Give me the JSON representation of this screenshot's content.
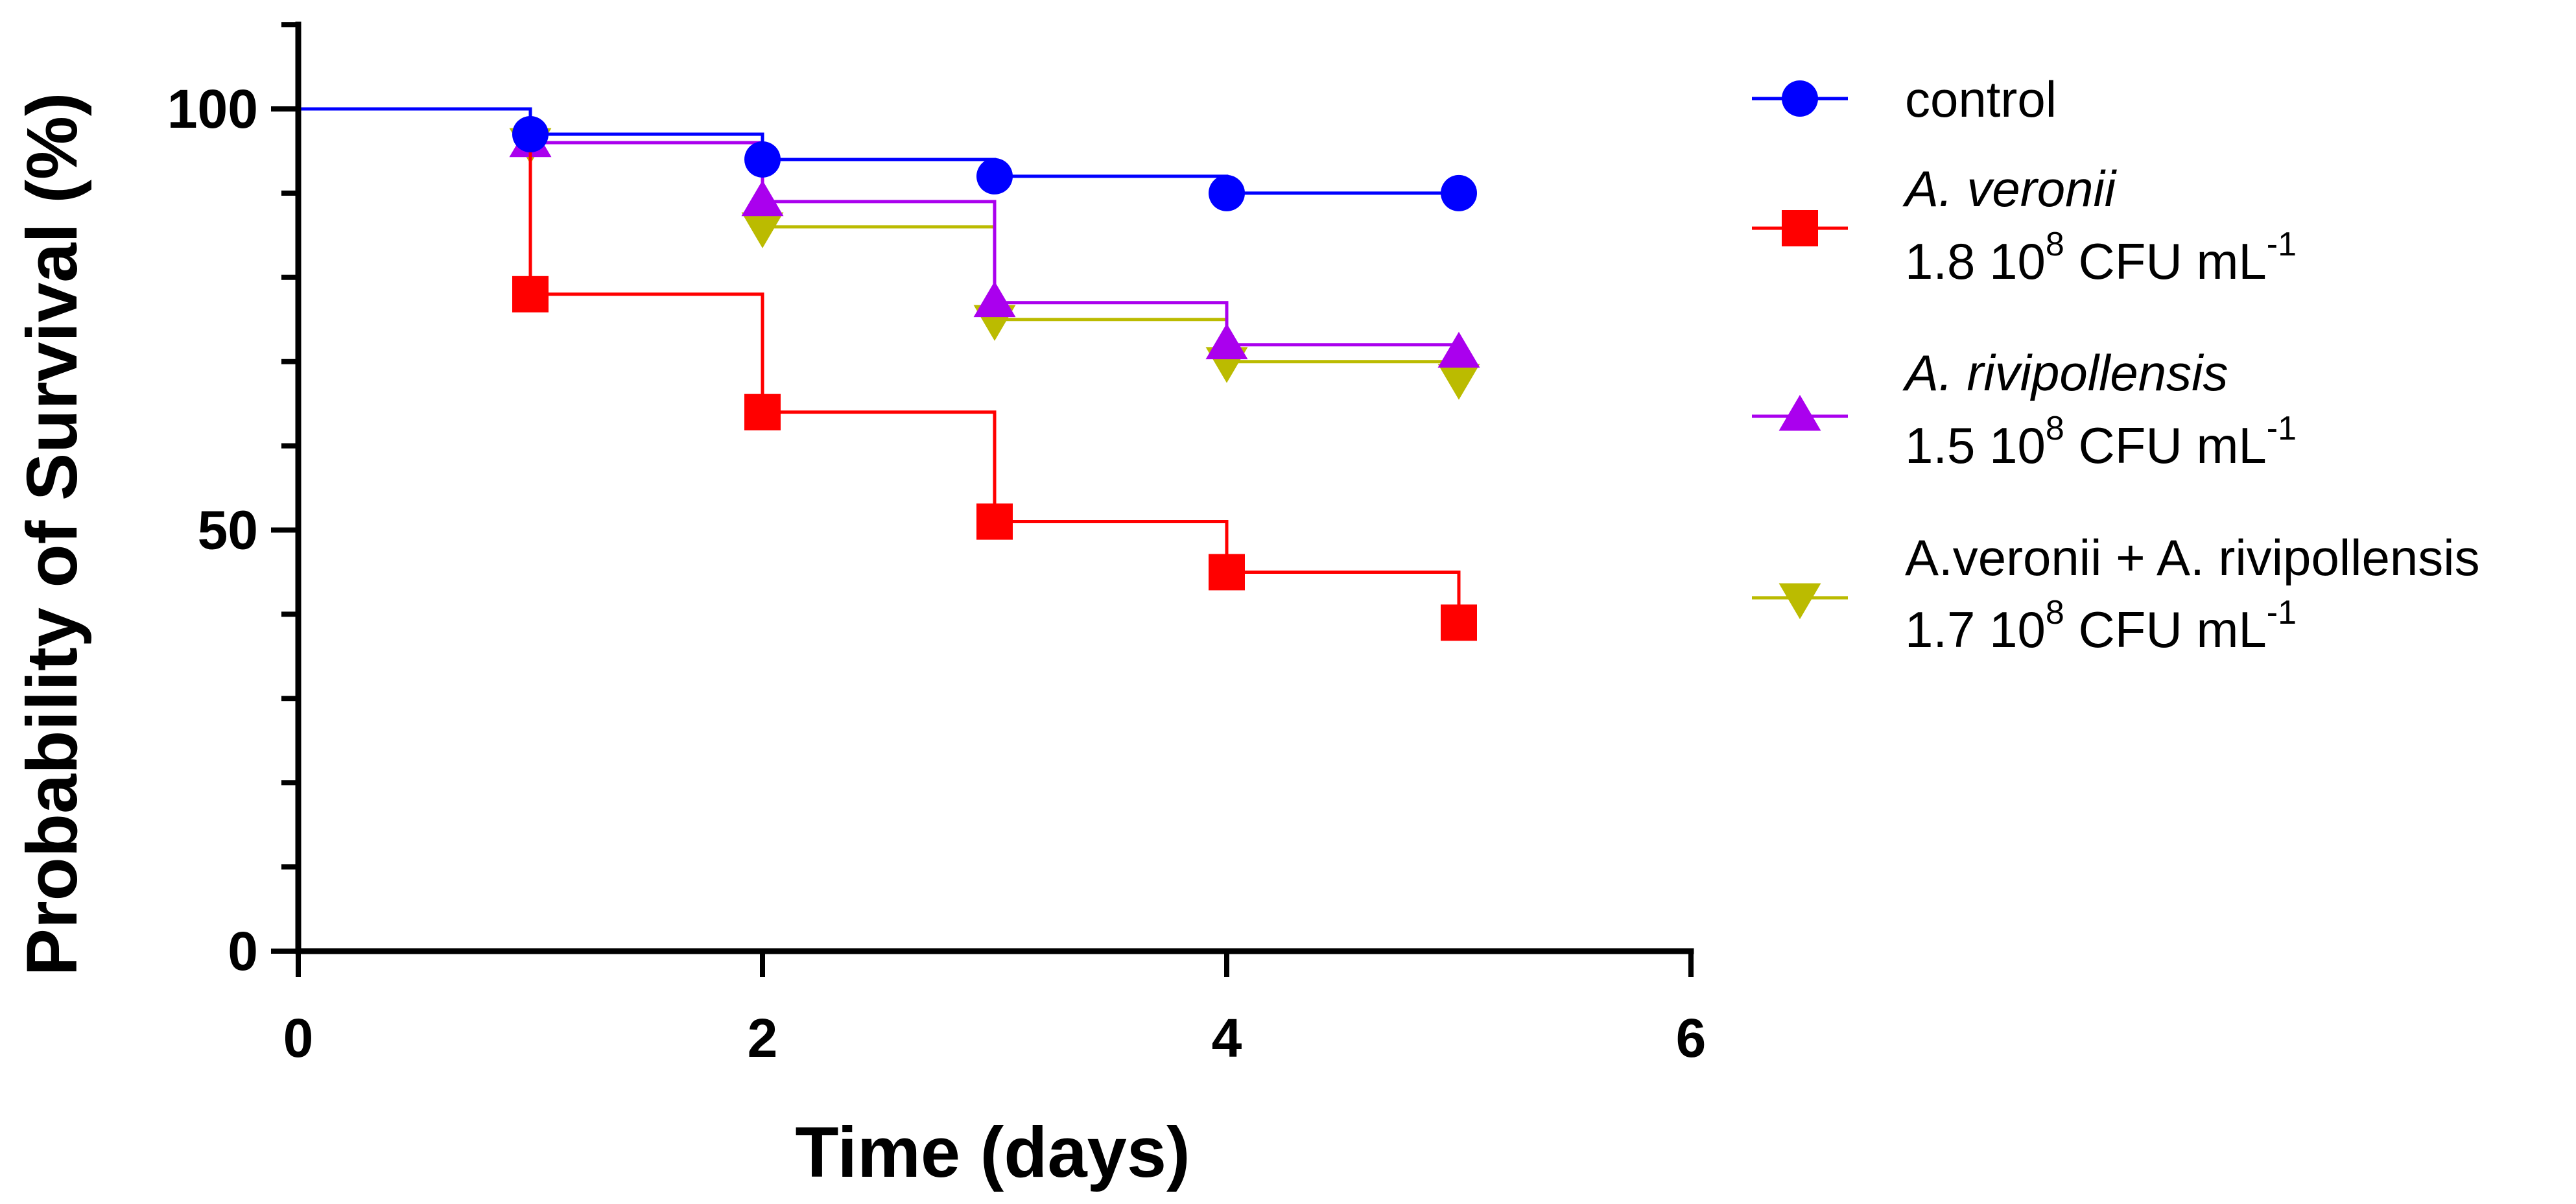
{
  "chart_data": {
    "type": "line",
    "subtype": "kaplan-meier-step",
    "title": "",
    "xlabel": "Time (days)",
    "ylabel": "Probability of Survival (%)",
    "xlim": [
      0,
      6
    ],
    "ylim": [
      0,
      110
    ],
    "xticks": [
      0,
      2,
      4,
      6
    ],
    "xtick_labels": [
      "0",
      "2",
      "4",
      "6"
    ],
    "yticks_major": [
      0,
      50,
      100
    ],
    "ytick_labels": [
      "0",
      "50",
      "100"
    ],
    "yticks_minor_step": 10,
    "grid": false,
    "legend_position": "right",
    "series": [
      {
        "name": "control",
        "name_italic": false,
        "concentration": "",
        "color": "#0000ff",
        "marker": "circle",
        "x": [
          0,
          1,
          2,
          3,
          4,
          5
        ],
        "values": [
          100,
          97,
          94,
          92,
          90,
          90
        ]
      },
      {
        "name": "A. veronii",
        "name_italic": true,
        "concentration": "1.8 10|8| CFU mL|-1",
        "color": "#ff0000",
        "marker": "square",
        "x": [
          0,
          1,
          2,
          3,
          4,
          5
        ],
        "values": [
          100,
          78,
          64,
          51,
          45,
          39
        ]
      },
      {
        "name": "A. rivipollensis",
        "name_italic": true,
        "concentration": "1.5 10|8| CFU mL|-1",
        "color": "#aa00ee",
        "marker": "triangle-up",
        "x": [
          0,
          1,
          2,
          3,
          4,
          5
        ],
        "values": [
          100,
          96,
          89,
          77,
          72,
          71
        ]
      },
      {
        "name": "A.veronii + A. rivipollensis",
        "name_italic": false,
        "concentration": "1.7 10|8| CFU mL|-1",
        "color": "#bbbb00",
        "marker": "triangle-down",
        "x": [
          0,
          1,
          2,
          3,
          4,
          5
        ],
        "values": [
          100,
          96,
          86,
          75,
          70,
          68
        ]
      }
    ]
  }
}
